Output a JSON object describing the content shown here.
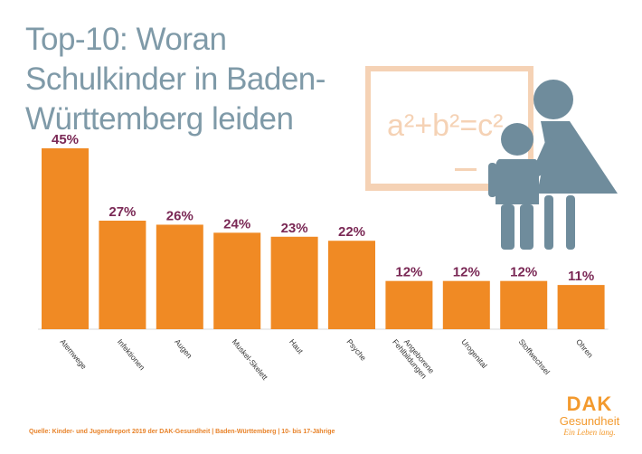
{
  "title": "Top-10: Woran Schulkinder in Baden-Württemberg leiden",
  "board_text": "a²+b²=c²",
  "source": "Quelle: Kinder- und Jugendreport 2019 der DAK-Gesundheit | Baden-Württemberg | 10- bis 17-Jährige",
  "logo": {
    "main": "DAK",
    "sub": "Gesundheit",
    "slogan": "Ein Leben lang."
  },
  "colors": {
    "bar": "#f08a24",
    "value_label": "#7a2855",
    "title": "#7f9aa8",
    "figure": "#6f8c9c",
    "board": "#f5d2b5",
    "logo": "#f39a2e"
  },
  "chart_data": {
    "type": "bar",
    "title": "Top-10: Woran Schulkinder in Baden-Württemberg leiden",
    "categories": [
      "Atemwege",
      "Infektionen",
      "Augen",
      "Muskel-Skelett",
      "Haut",
      "Psyche",
      "Angeborene Fehlbildungen",
      "Urogenital",
      "Stoffwechsel",
      "Ohren"
    ],
    "values": [
      45,
      27,
      26,
      24,
      23,
      22,
      12,
      12,
      12,
      11
    ],
    "value_labels": [
      "45%",
      "27%",
      "26%",
      "24%",
      "23%",
      "22%",
      "12%",
      "12%",
      "12%",
      "11%"
    ],
    "xlabel": "",
    "ylabel": "",
    "ylim": [
      0,
      45
    ],
    "grid": false,
    "legend": "none"
  }
}
